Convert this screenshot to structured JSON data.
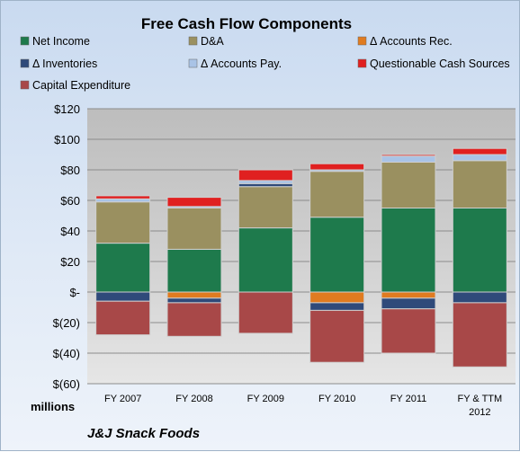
{
  "chart_data": {
    "type": "bar",
    "stacked": true,
    "title": "Free Cash Flow Components",
    "units_label": "millions",
    "company": "J&J Snack Foods",
    "categories": [
      [
        "FY 2007"
      ],
      [
        "FY 2008"
      ],
      [
        "FY 2009"
      ],
      [
        "FY 2010"
      ],
      [
        "FY 2011"
      ],
      [
        "FY & TTM",
        "2012"
      ]
    ],
    "ylim": [
      -60,
      120
    ],
    "yticks": [
      120,
      100,
      80,
      60,
      40,
      20,
      0,
      -20,
      -40,
      -60
    ],
    "ytick_labels": [
      "$120",
      "$100",
      "$80",
      "$60",
      "$40",
      "$20",
      "$-",
      "$(20)",
      "$(40)",
      "$(60)"
    ],
    "grid": true,
    "legend_position": "top",
    "series": [
      {
        "name": "Net Income",
        "color": "#1e7a4c",
        "values": [
          32,
          28,
          42,
          49,
          55,
          55
        ]
      },
      {
        "name": "D&A",
        "color": "#9a9060",
        "values": [
          27,
          27,
          27,
          30,
          30,
          31
        ]
      },
      {
        "name": "Δ Accounts Rec.",
        "color": "#e07b20",
        "values": [
          0,
          -4,
          0,
          -7,
          -4,
          0
        ]
      },
      {
        "name": "Δ Inventories",
        "color": "#2f4a7a",
        "values": [
          -6,
          -3,
          2,
          -5,
          -7,
          -7
        ]
      },
      {
        "name": "Δ Accounts Pay.",
        "color": "#a9c3e6",
        "values": [
          2,
          1,
          2,
          1,
          4,
          4
        ]
      },
      {
        "name": "Questionable Cash Sources",
        "color": "#e02020",
        "values": [
          2,
          6,
          7,
          4,
          1,
          4
        ]
      },
      {
        "name": "Capital Expenditure",
        "color": "#a84848",
        "values": [
          -22,
          -22,
          -27,
          -34,
          -29,
          -42
        ]
      }
    ]
  }
}
